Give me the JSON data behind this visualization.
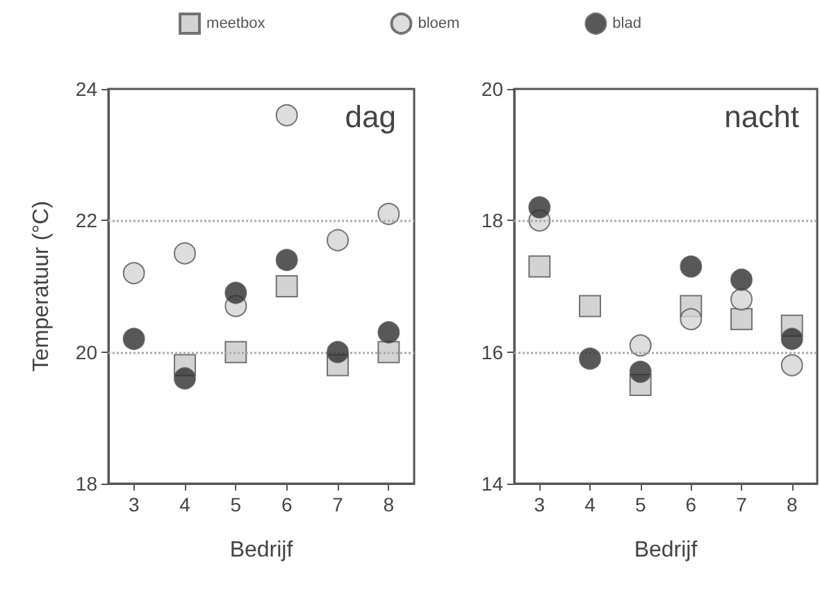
{
  "chart_data": [
    {
      "type": "scatter",
      "title": "dag",
      "xlabel": "Bedrijf",
      "ylabel": "Temperatuur (°C)",
      "categories": [
        "3",
        "4",
        "5",
        "6",
        "7",
        "8"
      ],
      "ylim": [
        18,
        24
      ],
      "yticks": [
        18,
        20,
        22,
        24
      ],
      "grid": false,
      "legend": "top",
      "series": [
        {
          "name": "meetbox",
          "color": "#c8c8c8",
          "marker": "square",
          "values": [
            null,
            19.8,
            20.0,
            21.0,
            19.8,
            20.0
          ]
        },
        {
          "name": "bloem",
          "color": "#d4d4d4",
          "marker": "circle",
          "values": [
            21.2,
            21.5,
            20.7,
            23.6,
            21.7,
            22.1
          ]
        },
        {
          "name": "blad",
          "color": "#2e2e2e",
          "marker": "circle",
          "values": [
            20.2,
            19.6,
            20.9,
            21.4,
            20.0,
            20.3
          ]
        }
      ],
      "ref_lines": [
        {
          "axis": "y",
          "value": 22,
          "label": null,
          "color": "#aaaaaa",
          "line_style": "dotted"
        },
        {
          "axis": "y",
          "value": 20,
          "label": null,
          "color": "#aaaaaa",
          "line_style": "dotted"
        }
      ]
    },
    {
      "type": "scatter",
      "title": "nacht",
      "xlabel": "Bedrijf",
      "categories": [
        "3",
        "4",
        "5",
        "6",
        "7",
        "8"
      ],
      "ylim": [
        14,
        20
      ],
      "yticks": [
        14,
        16,
        18,
        20
      ],
      "grid": false,
      "legend": false,
      "series": [
        {
          "color": "#c8c8c8",
          "marker": "square",
          "values": [
            17.3,
            16.7,
            15.5,
            16.7,
            16.5,
            16.4
          ]
        },
        {
          "color": "#d4d4d4",
          "marker": "circle",
          "values": [
            18.0,
            null,
            16.1,
            16.5,
            16.8,
            15.8
          ]
        },
        {
          "color": "#2e2e2e",
          "marker": "circle",
          "values": [
            18.2,
            15.9,
            15.7,
            17.3,
            17.1,
            16.2
          ]
        }
      ],
      "ref_lines": [
        {
          "axis": "y",
          "value": 18,
          "label": null,
          "color": "#aaaaaa",
          "line_style": "dotted"
        },
        {
          "axis": "y",
          "value": 16,
          "label": null,
          "color": "#aaaaaa",
          "line_style": "dotted"
        }
      ]
    }
  ]
}
